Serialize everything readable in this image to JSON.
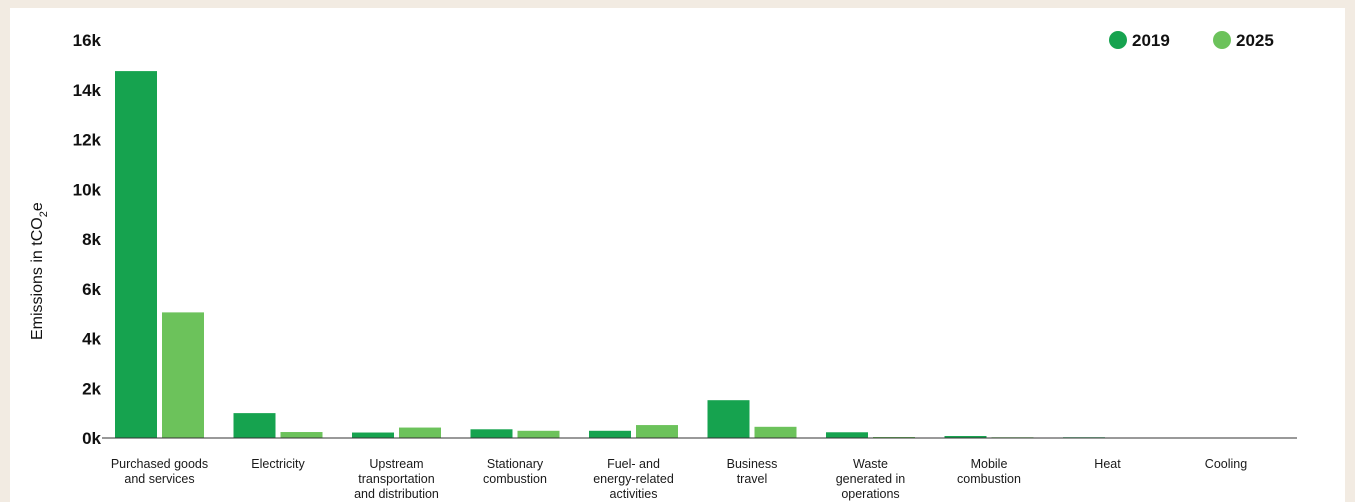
{
  "colors": {
    "series_2019": "#16a34f",
    "series_2025": "#6cc25b",
    "background": "#f2ebe2",
    "panel": "#ffffff",
    "axis": "#333333"
  },
  "chart_data": {
    "type": "bar",
    "categories": [
      [
        "Purchased goods",
        "and services"
      ],
      [
        "Electricity"
      ],
      [
        "Upstream",
        "transportation",
        "and distribution"
      ],
      [
        "Stationary",
        "combustion"
      ],
      [
        "Fuel- and",
        "energy-related",
        "activities"
      ],
      [
        "Business",
        "travel"
      ],
      [
        "Waste",
        "generated in",
        "operations"
      ],
      [
        "Mobile",
        "combustion"
      ],
      [
        "Heat"
      ],
      [
        "Cooling"
      ]
    ],
    "series": [
      {
        "name": "2019",
        "values": [
          14750,
          1000,
          220,
          350,
          290,
          1520,
          230,
          80,
          30,
          5
        ]
      },
      {
        "name": "2025",
        "values": [
          5050,
          240,
          420,
          290,
          520,
          450,
          40,
          30,
          5,
          5
        ]
      }
    ],
    "ylabel": "Emissions in tCO",
    "ylabel_subscript": "2",
    "ylabel_suffix": "e",
    "ylim": [
      0,
      16000
    ],
    "yticks": [
      "0k",
      "2k",
      "4k",
      "6k",
      "8k",
      "10k",
      "12k",
      "14k",
      "16k"
    ],
    "legend_position": "top-right",
    "grid": false
  }
}
